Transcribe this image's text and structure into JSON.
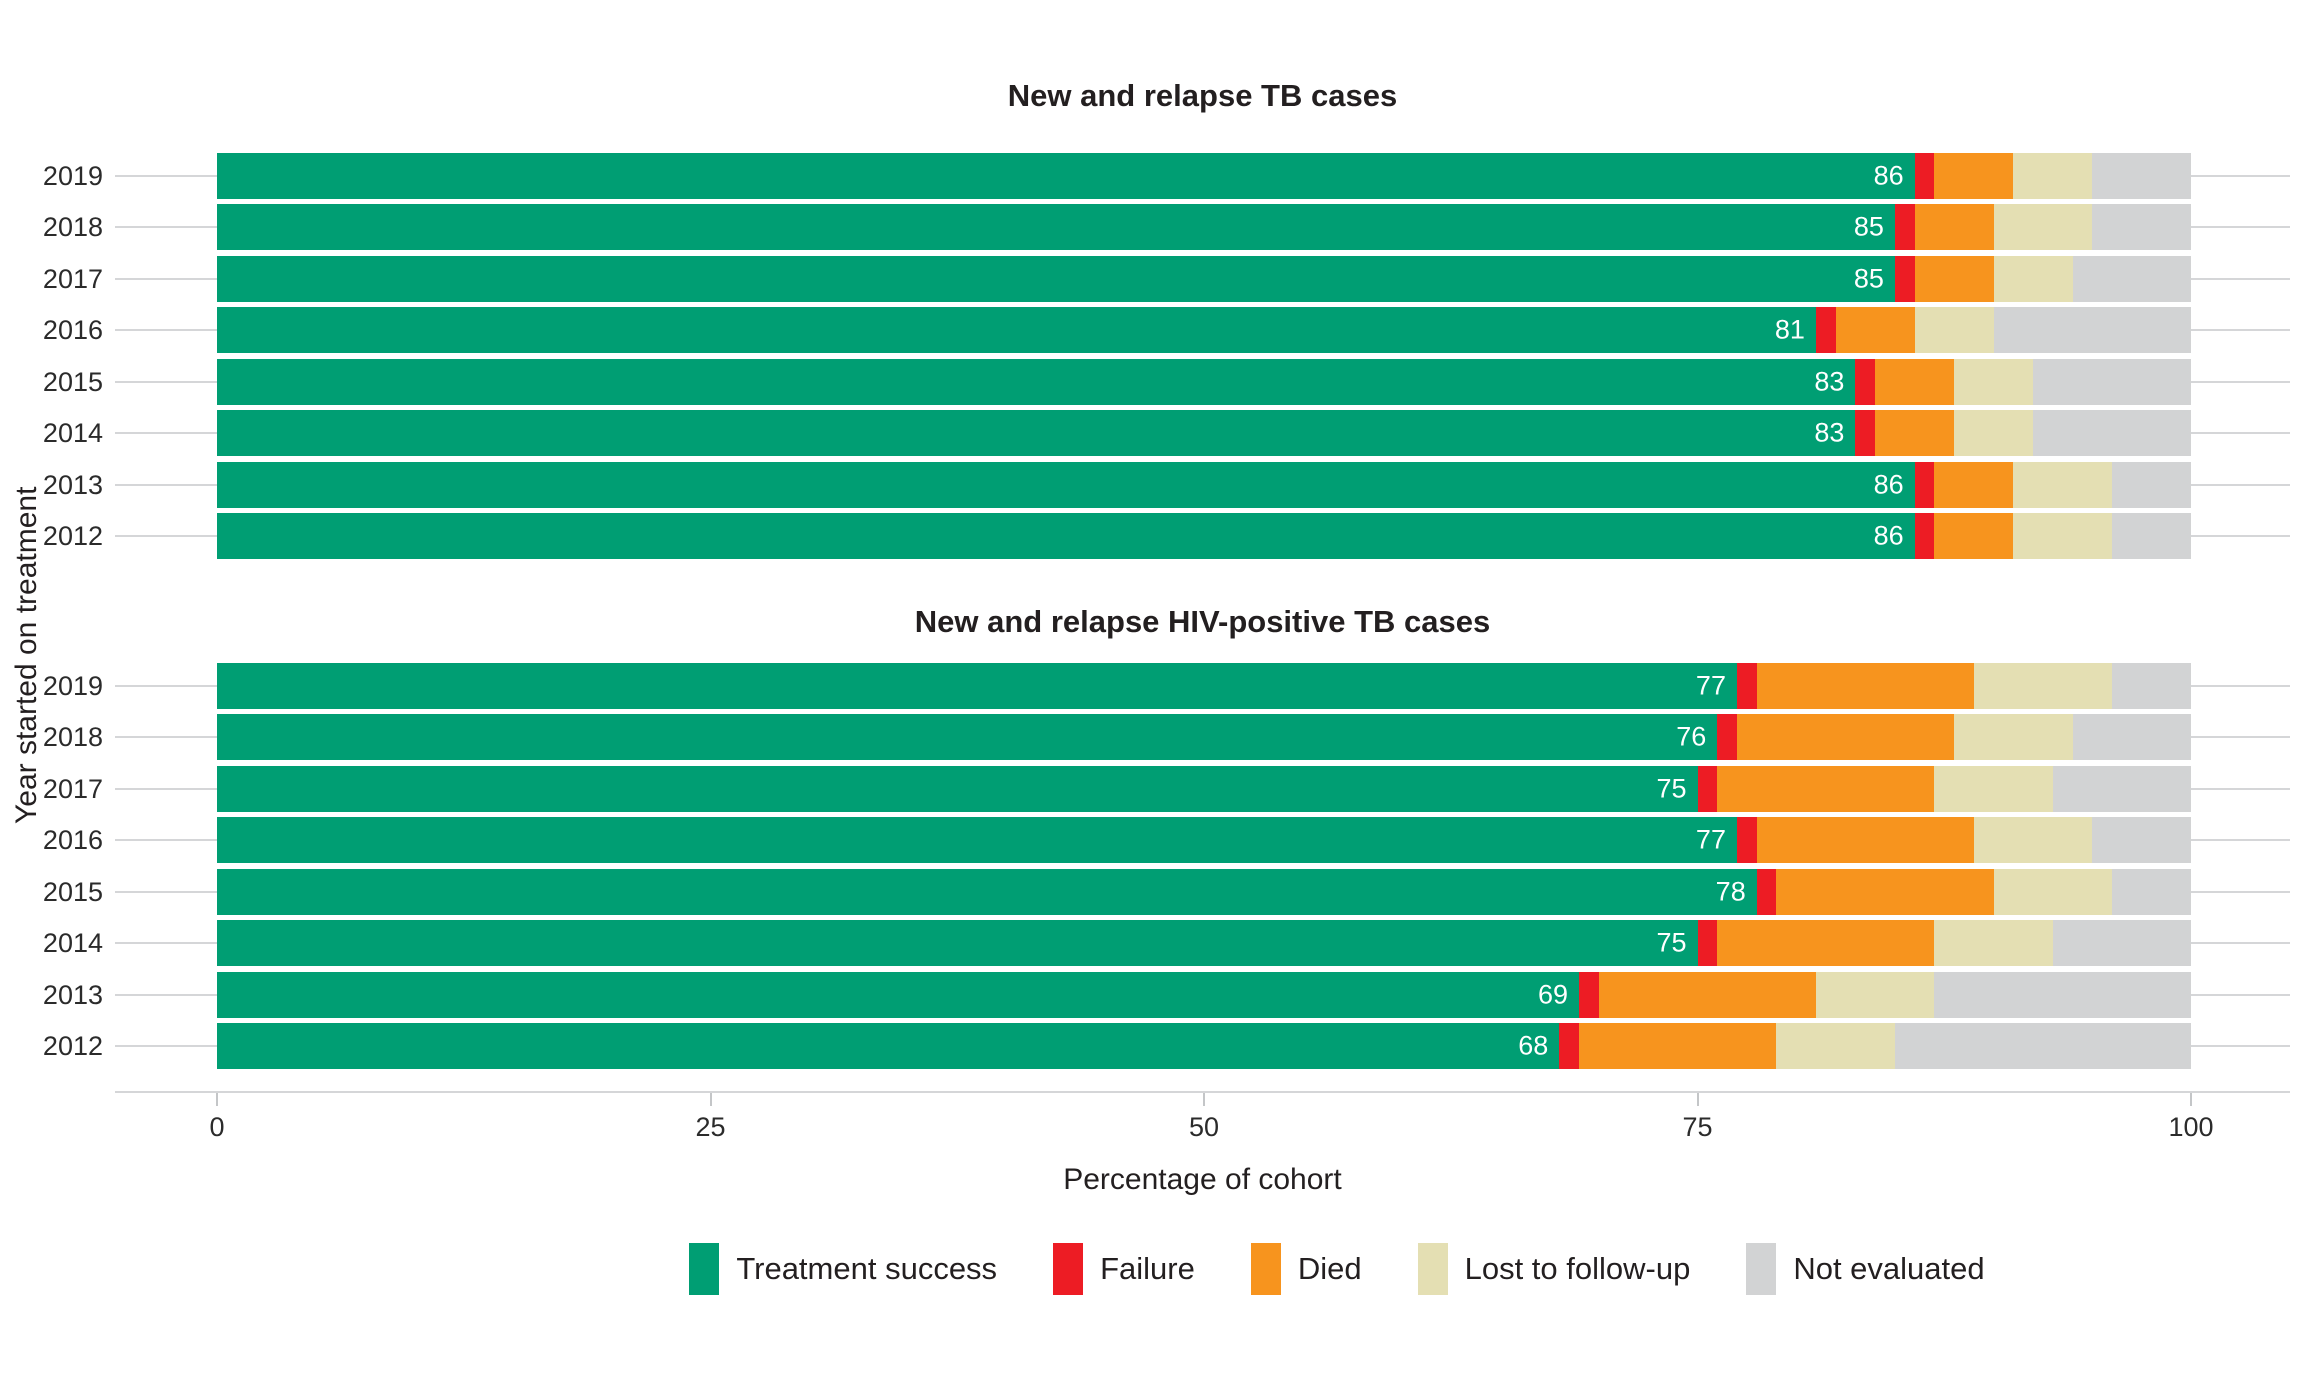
{
  "figure": {
    "y_axis_label": "Year started on treatment",
    "x_axis_label": "Percentage of cohort",
    "x_ticks": [
      "0",
      "25",
      "50",
      "75",
      "100"
    ],
    "colors": {
      "treatment_success": "#009E73",
      "failure": "#ED1C24",
      "died": "#F7941E",
      "lost_to_follow_up": "#E4DFB3",
      "not_evaluated": "#D2D3D4",
      "gridline": "#D5D6D8",
      "background": "#FFFFFF"
    },
    "legend": [
      {
        "label": "Treatment success",
        "color": "#009E73"
      },
      {
        "label": "Failure",
        "color": "#ED1C24"
      },
      {
        "label": "Died",
        "color": "#F7941E"
      },
      {
        "label": "Lost to follow-up",
        "color": "#E4DFB3"
      },
      {
        "label": "Not evaluated",
        "color": "#D2D3D4"
      }
    ]
  },
  "chart_data": [
    {
      "type": "bar",
      "orientation": "horizontal",
      "stacked": true,
      "title": "New and relapse TB cases",
      "xlabel": "Percentage of cohort",
      "ylabel": "Year started on treatment",
      "xlim": [
        0,
        100
      ],
      "grid": "horizontal-only",
      "categories": [
        "2019",
        "2018",
        "2017",
        "2016",
        "2015",
        "2014",
        "2013",
        "2012"
      ],
      "series_names": [
        "Treatment success",
        "Failure",
        "Died",
        "Lost to follow-up",
        "Not evaluated"
      ],
      "rows": [
        {
          "year": "2019",
          "values": [
            86,
            1,
            4,
            4,
            5
          ],
          "label": "86"
        },
        {
          "year": "2018",
          "values": [
            85,
            1,
            4,
            5,
            5
          ],
          "label": "85"
        },
        {
          "year": "2017",
          "values": [
            85,
            1,
            4,
            4,
            6
          ],
          "label": "85"
        },
        {
          "year": "2016",
          "values": [
            81,
            1,
            4,
            4,
            10
          ],
          "label": "81"
        },
        {
          "year": "2015",
          "values": [
            83,
            1,
            4,
            4,
            8
          ],
          "label": "83"
        },
        {
          "year": "2014",
          "values": [
            83,
            1,
            4,
            4,
            8
          ],
          "label": "83"
        },
        {
          "year": "2013",
          "values": [
            86,
            1,
            4,
            5,
            4
          ],
          "label": "86"
        },
        {
          "year": "2012",
          "values": [
            86,
            1,
            4,
            5,
            4
          ],
          "label": "86"
        }
      ]
    },
    {
      "type": "bar",
      "orientation": "horizontal",
      "stacked": true,
      "title": "New and relapse HIV-positive TB cases",
      "xlabel": "Percentage of cohort",
      "ylabel": "Year started on treatment",
      "xlim": [
        0,
        100
      ],
      "grid": "horizontal-only",
      "categories": [
        "2019",
        "2018",
        "2017",
        "2016",
        "2015",
        "2014",
        "2013",
        "2012"
      ],
      "series_names": [
        "Treatment success",
        "Failure",
        "Died",
        "Lost to follow-up",
        "Not evaluated"
      ],
      "rows": [
        {
          "year": "2019",
          "values": [
            77,
            1,
            11,
            7,
            4
          ],
          "label": "77"
        },
        {
          "year": "2018",
          "values": [
            76,
            1,
            11,
            6,
            6
          ],
          "label": "76"
        },
        {
          "year": "2017",
          "values": [
            75,
            1,
            11,
            6,
            7
          ],
          "label": "75"
        },
        {
          "year": "2016",
          "values": [
            77,
            1,
            11,
            6,
            5
          ],
          "label": "77"
        },
        {
          "year": "2015",
          "values": [
            78,
            1,
            11,
            6,
            4
          ],
          "label": "78"
        },
        {
          "year": "2014",
          "values": [
            75,
            1,
            11,
            6,
            7
          ],
          "label": "75"
        },
        {
          "year": "2013",
          "values": [
            69,
            1,
            11,
            6,
            13
          ],
          "label": "69"
        },
        {
          "year": "2012",
          "values": [
            68,
            1,
            10,
            6,
            15
          ],
          "label": "68"
        }
      ]
    }
  ]
}
